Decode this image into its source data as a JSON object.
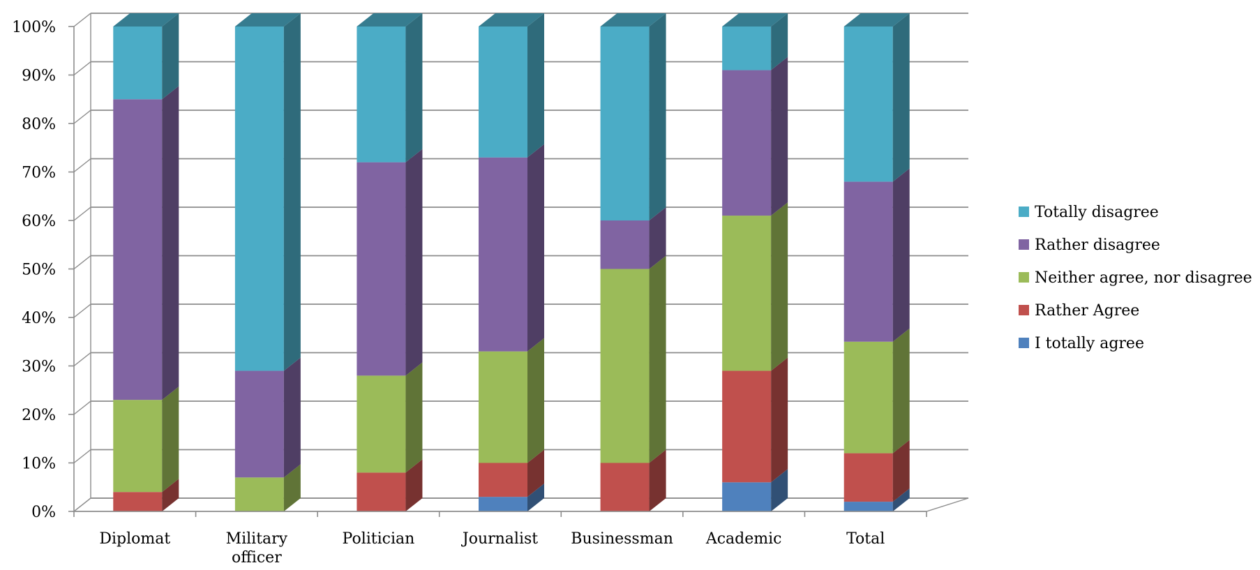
{
  "chart_data": {
    "type": "bar",
    "stacked": true,
    "three_d": true,
    "grid": true,
    "legend_position": "right",
    "ylim": [
      0,
      100
    ],
    "ytick_labels": [
      "0%",
      "10%",
      "20%",
      "30%",
      "40%",
      "50%",
      "60%",
      "70%",
      "80%",
      "90%",
      "100%"
    ],
    "categories": [
      [
        "Diplomat"
      ],
      [
        "Military",
        "officer"
      ],
      [
        "Politician"
      ],
      [
        "Journalist"
      ],
      [
        "Businessman"
      ],
      [
        "Academic"
      ],
      [
        "Total"
      ]
    ],
    "series": [
      {
        "name": "I totally agree",
        "color": "#4f81bd",
        "values": [
          0,
          0,
          0,
          3,
          0,
          6,
          2
        ]
      },
      {
        "name": "Rather Agree",
        "color": "#c0504d",
        "values": [
          4,
          0,
          8,
          7,
          10,
          23,
          10
        ]
      },
      {
        "name": "Neither agree, nor disagree",
        "color": "#9bbb59",
        "values": [
          19,
          7,
          20,
          23,
          40,
          32,
          23
        ]
      },
      {
        "name": "Rather disagree",
        "color": "#8064a2",
        "values": [
          62,
          22,
          44,
          40,
          10,
          30,
          33
        ]
      },
      {
        "name": "Totally disagree",
        "color": "#4bacc6",
        "values": [
          15,
          71,
          28,
          27,
          40,
          9,
          32
        ]
      }
    ]
  }
}
